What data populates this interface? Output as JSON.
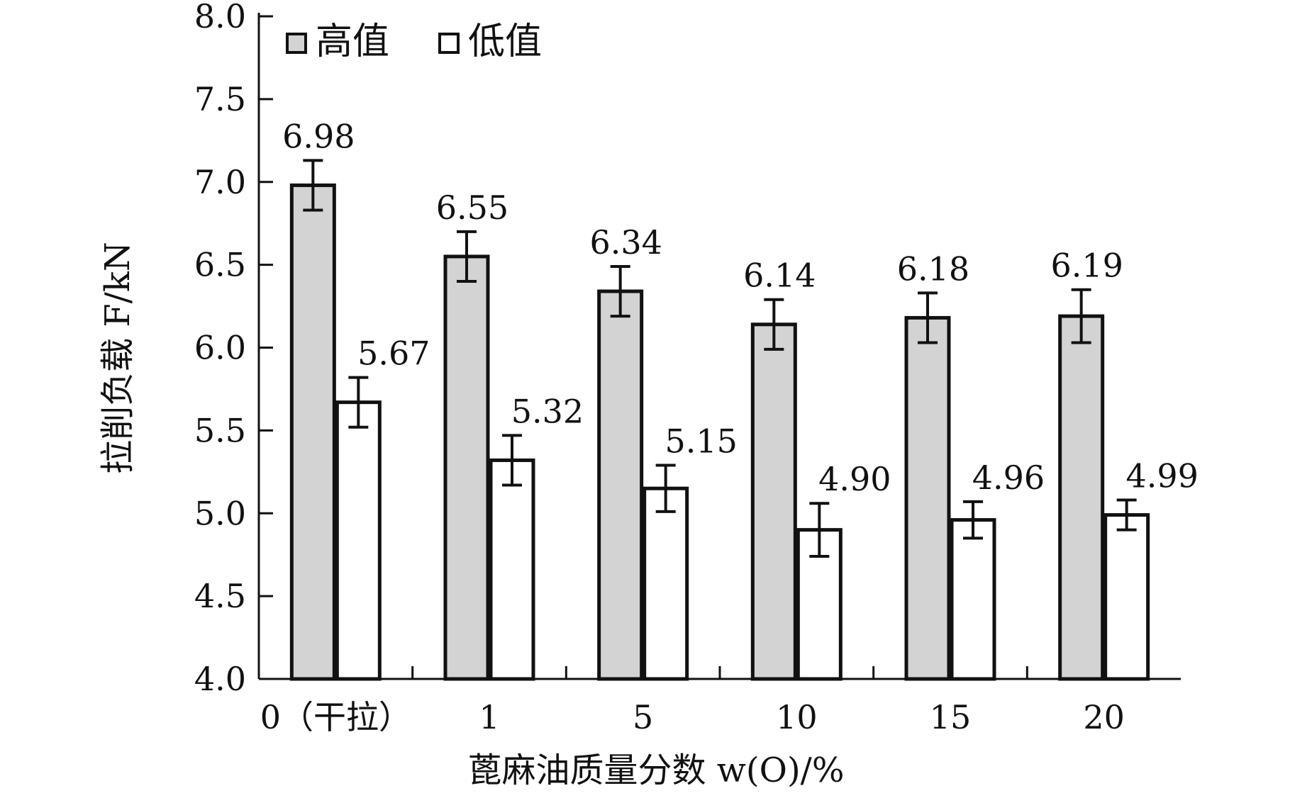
{
  "chart_data": {
    "type": "bar",
    "categories": [
      "0（干拉）",
      "1",
      "5",
      "10",
      "15",
      "20"
    ],
    "series": [
      {
        "name": "高值",
        "values": [
          6.98,
          6.55,
          6.34,
          6.14,
          6.18,
          6.19
        ],
        "labels": [
          "6.98",
          "6.55",
          "6.34",
          "6.14",
          "6.18",
          "6.19"
        ],
        "error": [
          0.15,
          0.15,
          0.15,
          0.15,
          0.15,
          0.16
        ],
        "color": "#d3d3d3"
      },
      {
        "name": "低值",
        "values": [
          5.67,
          5.32,
          5.15,
          4.9,
          4.96,
          4.99
        ],
        "labels": [
          "5.67",
          "5.32",
          "5.15",
          "4.90",
          "4.96",
          "4.99"
        ],
        "error": [
          0.15,
          0.15,
          0.14,
          0.16,
          0.11,
          0.09
        ],
        "color": "#ffffff"
      }
    ],
    "ylim": [
      4.0,
      8.0
    ],
    "yticks": [
      "4.0",
      "4.5",
      "5.0",
      "5.5",
      "6.0",
      "6.5",
      "7.0",
      "7.5",
      "8.0"
    ],
    "xlabel": "蓖麻油质量分数 w(O)/%",
    "ylabel": "拉削负载 F/kN",
    "legend_position": "top-left",
    "grid": false
  }
}
